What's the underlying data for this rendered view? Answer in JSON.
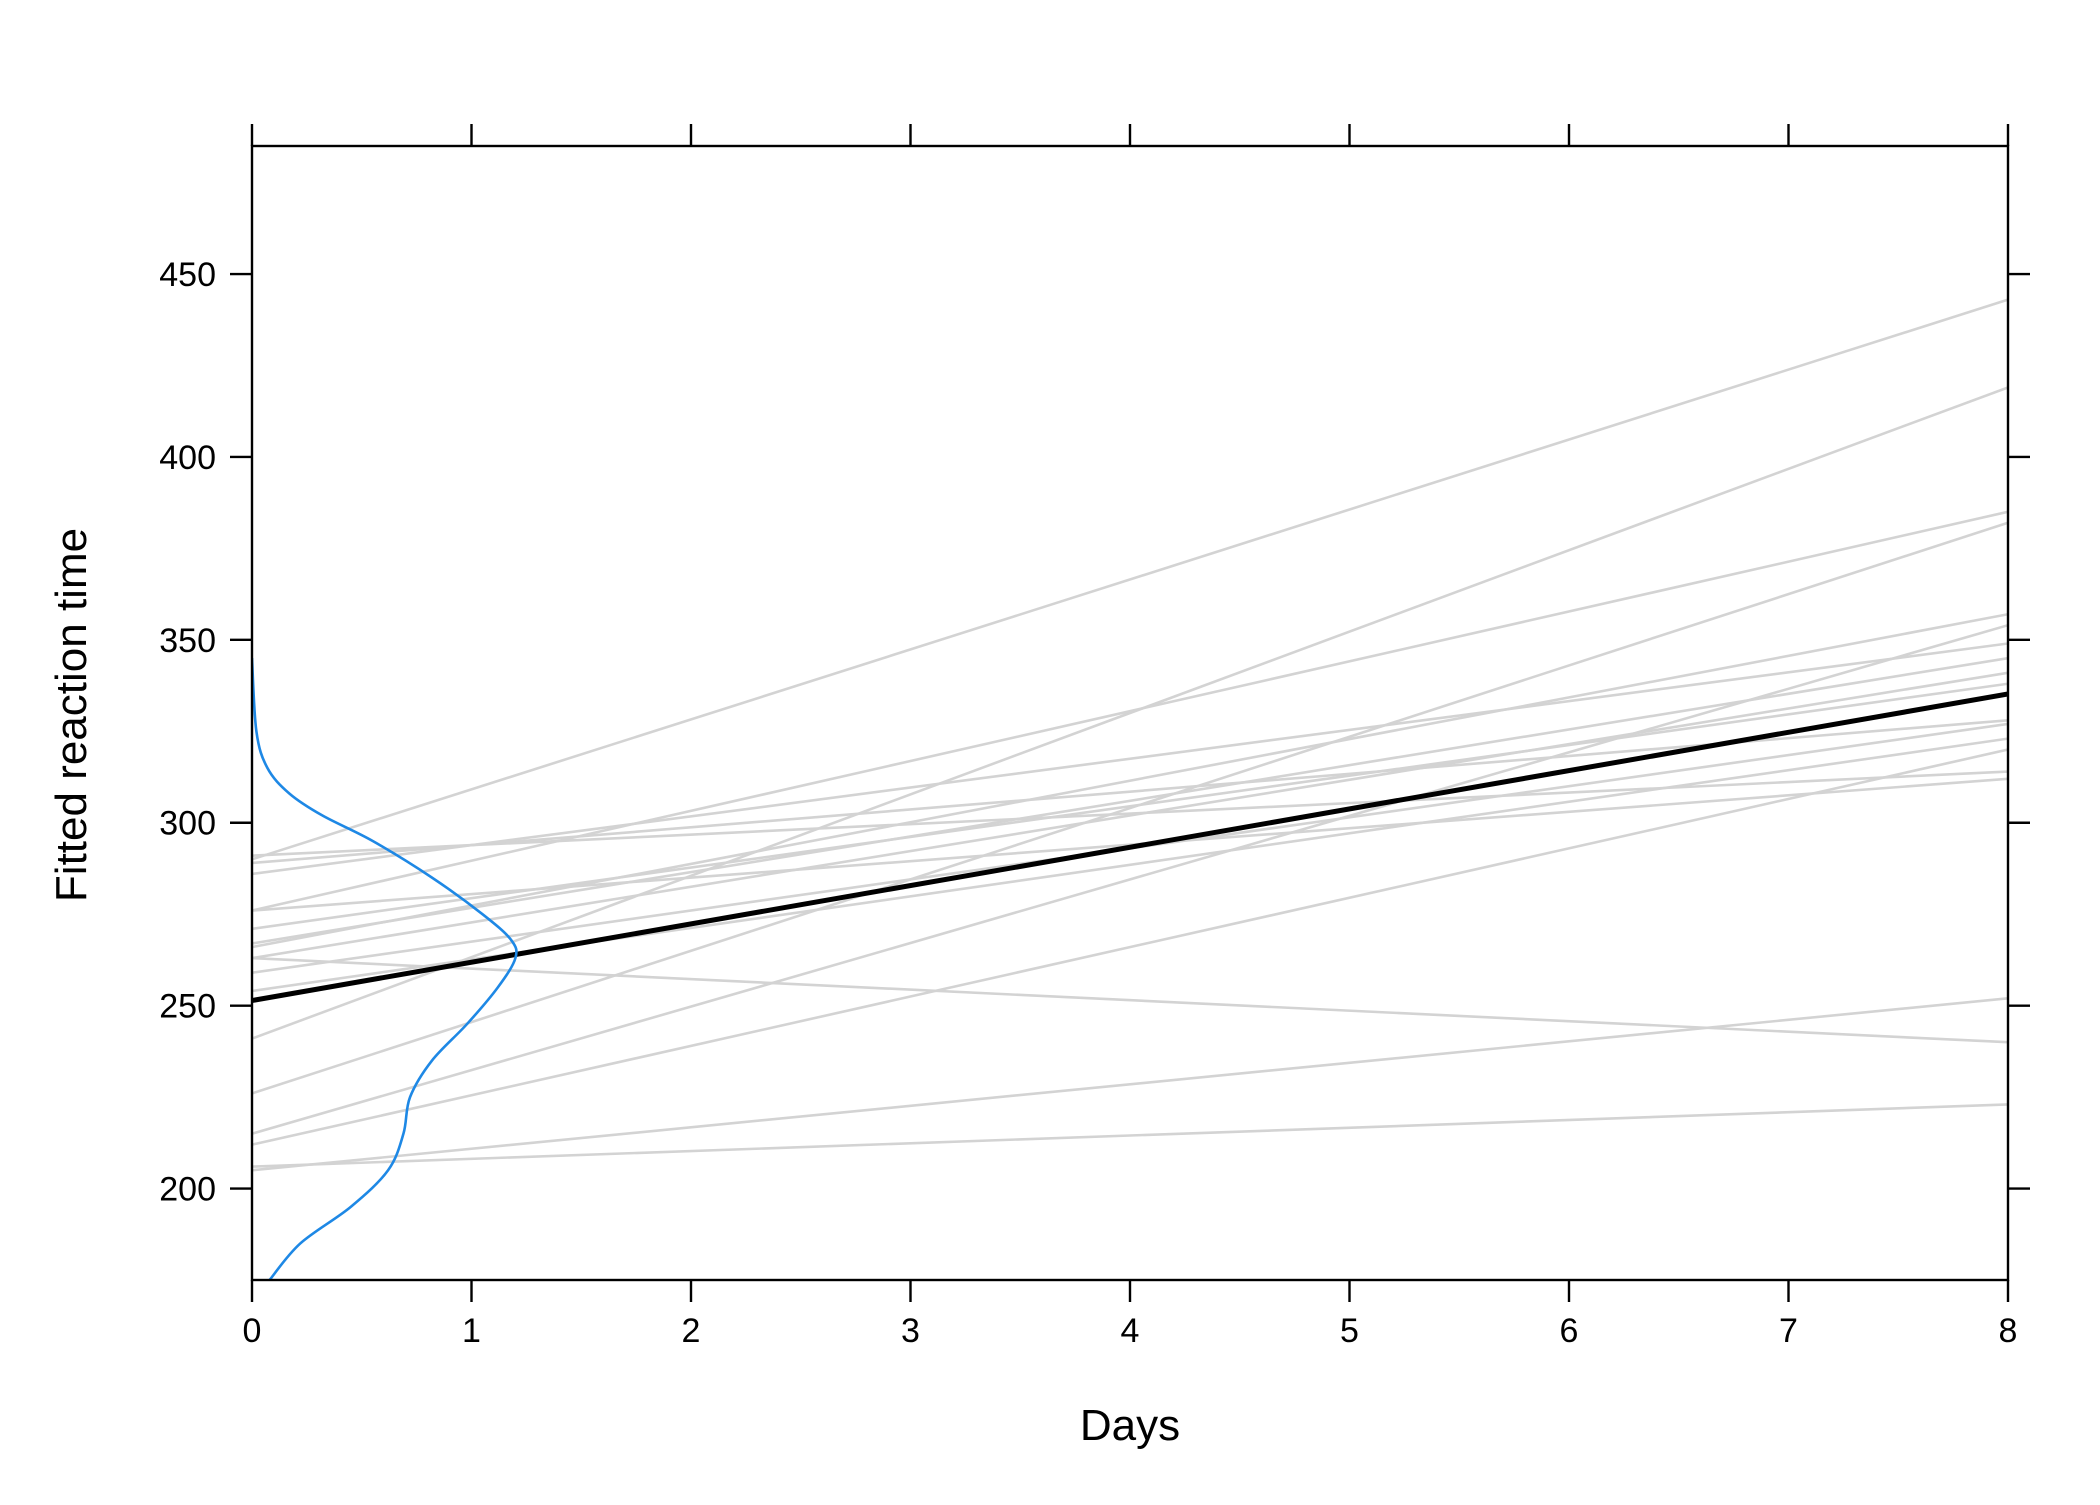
{
  "chart_data": {
    "type": "line",
    "title": "",
    "xlabel": "Days",
    "ylabel": "Fitted reaction time",
    "xlim": [
      0,
      8
    ],
    "ylim": [
      175,
      485
    ],
    "xticks": [
      0,
      1,
      2,
      3,
      4,
      5,
      6,
      7,
      8
    ],
    "xtick_labels": [
      "0",
      "1",
      "2",
      "3",
      "4",
      "5",
      "6",
      "7",
      "8"
    ],
    "yticks": [
      200,
      250,
      300,
      350,
      400,
      450
    ],
    "ytick_labels": [
      "200",
      "250",
      "300",
      "350",
      "400",
      "450"
    ],
    "grid": false,
    "legend": "none",
    "colors": {
      "subject_lines": "#d3d3d3",
      "mean_line": "#000000",
      "density_curve": "#1e88e5",
      "axis": "#000000"
    },
    "subject_lines": [
      {
        "x": [
          0,
          8
        ],
        "y": [
          290,
          443
        ]
      },
      {
        "x": [
          0,
          8
        ],
        "y": [
          241,
          419
        ]
      },
      {
        "x": [
          0,
          8
        ],
        "y": [
          276,
          385
        ]
      },
      {
        "x": [
          0,
          8
        ],
        "y": [
          226,
          382
        ]
      },
      {
        "x": [
          0,
          8
        ],
        "y": [
          266,
          357
        ]
      },
      {
        "x": [
          0,
          8
        ],
        "y": [
          215,
          354
        ]
      },
      {
        "x": [
          0,
          8
        ],
        "y": [
          286,
          349
        ]
      },
      {
        "x": [
          0,
          8
        ],
        "y": [
          267,
          345
        ]
      },
      {
        "x": [
          0,
          8
        ],
        "y": [
          263,
          341
        ]
      },
      {
        "x": [
          0,
          8
        ],
        "y": [
          271,
          338
        ]
      },
      {
        "x": [
          0,
          8
        ],
        "y": [
          289,
          328
        ]
      },
      {
        "x": [
          0,
          8
        ],
        "y": [
          259,
          327
        ]
      },
      {
        "x": [
          0,
          8
        ],
        "y": [
          254,
          323
        ]
      },
      {
        "x": [
          0,
          8
        ],
        "y": [
          212,
          320
        ]
      },
      {
        "x": [
          0,
          8
        ],
        "y": [
          291,
          314
        ]
      },
      {
        "x": [
          0,
          8
        ],
        "y": [
          276,
          312
        ]
      },
      {
        "x": [
          0,
          8
        ],
        "y": [
          205,
          252
        ]
      },
      {
        "x": [
          0,
          8
        ],
        "y": [
          263,
          240
        ]
      },
      {
        "x": [
          0,
          8
        ],
        "y": [
          206,
          223
        ]
      }
    ],
    "mean_line": {
      "x": [
        0,
        8
      ],
      "y": [
        251.4,
        335.2
      ]
    },
    "density_curve": {
      "description_axis": "density of intercepts plotted along y-axis, width in days units",
      "x": [
        0.0,
        0.02,
        0.07,
        0.17,
        0.32,
        0.55,
        0.82,
        1.05,
        1.18,
        1.2,
        1.12,
        0.98,
        0.82,
        0.72,
        0.69,
        0.62,
        0.45,
        0.22,
        0.08
      ],
      "y": [
        345,
        325,
        315,
        308,
        302,
        295,
        285,
        275,
        268,
        263,
        255,
        245,
        235,
        225,
        215,
        205,
        195,
        185,
        175
      ]
    }
  }
}
